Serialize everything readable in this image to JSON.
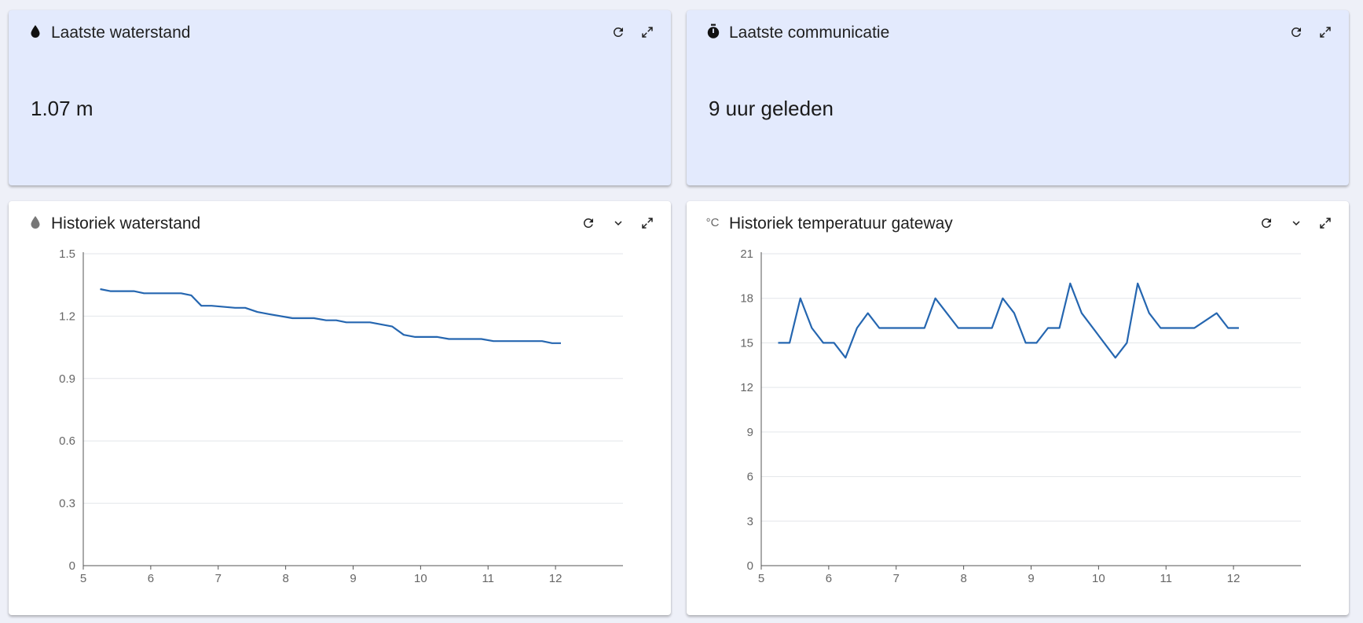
{
  "cards": {
    "water_last": {
      "title": "Laatste waterstand",
      "icon": "water-drop-icon",
      "value": "1.07 m"
    },
    "comm_last": {
      "title": "Laatste communicatie",
      "icon": "stopwatch-icon",
      "value": "9 uur geleden"
    },
    "water_hist": {
      "title": "Historiek waterstand",
      "icon": "water-drop-icon"
    },
    "temp_hist": {
      "title": "Historiek temperatuur gateway",
      "icon": "celsius-icon",
      "icon_text": "°C"
    }
  },
  "colors": {
    "accent_line": "#2566b0",
    "tint_card": "#e3eafd",
    "grid": "#e3e6ea"
  },
  "chart_data": [
    {
      "type": "line",
      "title": "Historiek waterstand",
      "xlabel": "",
      "ylabel": "",
      "xlim": [
        5,
        13
      ],
      "ylim": [
        0,
        1.5
      ],
      "xticks": [
        5,
        6,
        7,
        8,
        9,
        10,
        11,
        12
      ],
      "yticks": [
        "0",
        "0.3",
        "0.6",
        "0.9",
        "1.2",
        "1.5"
      ],
      "grid": true,
      "series": [
        {
          "x": [
            5.25,
            5.4,
            5.75,
            5.9,
            6.45,
            6.6,
            6.75,
            6.9,
            7.25,
            7.4,
            7.58,
            7.75,
            8.1,
            8.42,
            8.6,
            8.75,
            8.9,
            9.25,
            9.58,
            9.75,
            9.92,
            10.25,
            10.42,
            10.9,
            11.08,
            11.8,
            11.95,
            12.08
          ],
          "y": [
            1.33,
            1.32,
            1.32,
            1.31,
            1.31,
            1.3,
            1.25,
            1.25,
            1.24,
            1.24,
            1.22,
            1.21,
            1.19,
            1.19,
            1.18,
            1.18,
            1.17,
            1.17,
            1.15,
            1.11,
            1.1,
            1.1,
            1.09,
            1.09,
            1.08,
            1.08,
            1.07,
            1.07
          ]
        }
      ]
    },
    {
      "type": "line",
      "title": "Historiek temperatuur gateway",
      "xlabel": "",
      "ylabel": "",
      "xlim": [
        5,
        13
      ],
      "ylim": [
        0,
        21
      ],
      "xticks": [
        5,
        6,
        7,
        8,
        9,
        10,
        11,
        12
      ],
      "yticks": [
        "0",
        "3",
        "6",
        "9",
        "12",
        "15",
        "18",
        "21"
      ],
      "grid": true,
      "series": [
        {
          "x": [
            5.25,
            5.42,
            5.58,
            5.75,
            5.92,
            6.08,
            6.25,
            6.42,
            6.58,
            6.75,
            7.08,
            7.42,
            7.58,
            7.75,
            7.92,
            8.42,
            8.58,
            8.75,
            8.92,
            9.08,
            9.25,
            9.42,
            9.58,
            9.75,
            10.25,
            10.42,
            10.58,
            10.75,
            10.92,
            11.42,
            11.75,
            11.92,
            12.08
          ],
          "y": [
            15,
            15,
            18,
            16,
            15,
            15,
            14,
            16,
            17,
            16,
            16,
            16,
            18,
            17,
            16,
            16,
            18,
            17,
            15,
            15,
            16,
            16,
            19,
            17,
            14,
            15,
            19,
            17,
            16,
            16,
            17,
            16,
            16
          ]
        }
      ]
    }
  ]
}
